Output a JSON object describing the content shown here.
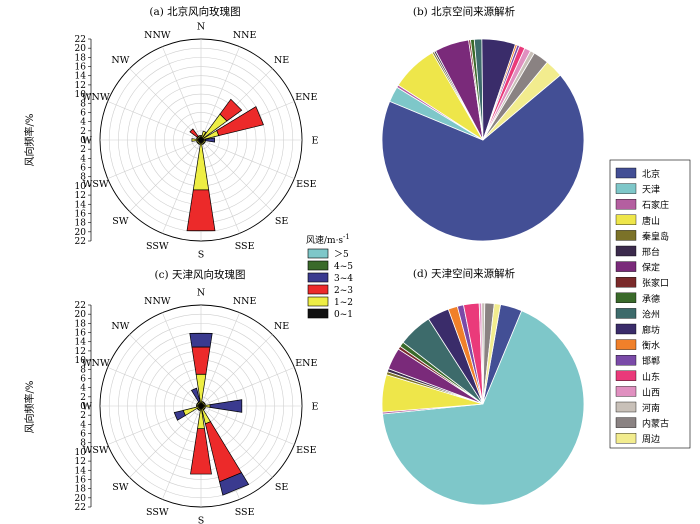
{
  "chart_data": [
    {
      "type": "wind-rose",
      "title": "(a) 北京风向玫瑰图",
      "ylabel": "风向频率/%",
      "directions": [
        "N",
        "NNE",
        "NE",
        "ENE",
        "E",
        "ESE",
        "SE",
        "SSE",
        "S",
        "SSW",
        "SW",
        "WSW",
        "W",
        "WNW",
        "NW",
        "NNW"
      ],
      "radial_ticks": [
        0,
        2,
        4,
        6,
        8,
        10,
        12,
        14,
        16,
        18,
        20,
        22
      ],
      "rmax": 22,
      "stacks": {
        "N": [
          {
            "class": "1~2",
            "from": 0,
            "to": 1
          }
        ],
        "NNE": [
          {
            "class": "1~2",
            "from": 0,
            "to": 2
          }
        ],
        "NE": [
          {
            "class": "1~2",
            "from": 0,
            "to": 7
          },
          {
            "class": "2~3",
            "from": 7,
            "to": 11
          }
        ],
        "ENE": [
          {
            "class": "1~2",
            "from": 0,
            "to": 4
          },
          {
            "class": "2~3",
            "from": 4,
            "to": 14
          }
        ],
        "E": [
          {
            "class": "1~2",
            "from": 0,
            "to": 1
          },
          {
            "class": "3~4",
            "from": 1,
            "to": 3
          }
        ],
        "ESE": [
          {
            "class": "1~2",
            "from": 0,
            "to": 1
          }
        ],
        "SE": [
          {
            "class": "1~2",
            "from": 0,
            "to": 1
          }
        ],
        "SSE": [
          {
            "class": "1~2",
            "from": 0,
            "to": 1
          }
        ],
        "S": [
          {
            "class": "1~2",
            "from": 0,
            "to": 11
          },
          {
            "class": "2~3",
            "from": 11,
            "to": 20
          }
        ],
        "SSW": [
          {
            "class": "1~2",
            "from": 0,
            "to": 1
          }
        ],
        "SW": [
          {
            "class": "1~2",
            "from": 0,
            "to": 1
          }
        ],
        "WSW": [
          {
            "class": "1~2",
            "from": 0,
            "to": 1
          }
        ],
        "W": [
          {
            "class": "1~2",
            "from": 0,
            "to": 2
          }
        ],
        "WNW": [
          {
            "class": "1~2",
            "from": 0,
            "to": 1
          }
        ],
        "NW": [
          {
            "class": "1~2",
            "from": 0,
            "to": 1
          },
          {
            "class": "2~3",
            "from": 1,
            "to": 3
          }
        ],
        "NNW": [
          {
            "class": "1~2",
            "from": 0,
            "to": 1
          }
        ]
      }
    },
    {
      "type": "pie",
      "title": "(b) 北京空间来源解析",
      "labels": [
        "北京",
        "天津",
        "石家庄",
        "唐山",
        "秦皇岛",
        "邢台",
        "保定",
        "张家口",
        "承德",
        "沧州",
        "廊坊",
        "衡水",
        "邯郸",
        "山东",
        "山西",
        "河南",
        "内蒙古",
        "周边"
      ],
      "values": [
        67.5,
        2.5,
        0.4,
        7.5,
        0.3,
        0.3,
        5.5,
        0.3,
        0.6,
        1.2,
        5.4,
        0.3,
        0.4,
        0.9,
        1.0,
        0.7,
        2.5,
        2.9
      ]
    },
    {
      "type": "wind-rose",
      "title": "(c) 天津风向玫瑰图",
      "ylabel": "风向频率/%",
      "directions": [
        "N",
        "NNE",
        "NE",
        "ENE",
        "E",
        "ESE",
        "SE",
        "SSE",
        "S",
        "SSW",
        "SW",
        "WSW",
        "W",
        "WNW",
        "NW",
        "NNW"
      ],
      "radial_ticks": [
        0,
        2,
        4,
        6,
        8,
        10,
        12,
        14,
        16,
        18,
        20,
        22
      ],
      "rmax": 22,
      "stacks": {
        "N": [
          {
            "class": "1~2",
            "from": 0,
            "to": 7
          },
          {
            "class": "2~3",
            "from": 7,
            "to": 13
          },
          {
            "class": "3~4",
            "from": 13,
            "to": 16
          }
        ],
        "NNE": [
          {
            "class": "1~2",
            "from": 0,
            "to": 1
          }
        ],
        "NE": [
          {
            "class": "1~2",
            "from": 0,
            "to": 1
          }
        ],
        "ENE": [
          {
            "class": "1~2",
            "from": 0,
            "to": 1
          }
        ],
        "E": [
          {
            "class": "1~2",
            "from": 0,
            "to": 2
          },
          {
            "class": "3~4",
            "from": 2,
            "to": 9
          }
        ],
        "ESE": [
          {
            "class": "1~2",
            "from": 0,
            "to": 1
          }
        ],
        "SE": [
          {
            "class": "1~2",
            "from": 0,
            "to": 1
          }
        ],
        "SSE": [
          {
            "class": "1~2",
            "from": 0,
            "to": 4
          },
          {
            "class": "2~3",
            "from": 4,
            "to": 17
          },
          {
            "class": "3~4",
            "from": 17,
            "to": 20
          }
        ],
        "S": [
          {
            "class": "1~2",
            "from": 0,
            "to": 5
          },
          {
            "class": "2~3",
            "from": 5,
            "to": 15
          }
        ],
        "SSW": [
          {
            "class": "1~2",
            "from": 0,
            "to": 1
          }
        ],
        "SW": [
          {
            "class": "1~2",
            "from": 0,
            "to": 1
          }
        ],
        "WSW": [
          {
            "class": "1~2",
            "from": 0,
            "to": 4
          },
          {
            "class": "3~4",
            "from": 4,
            "to": 6
          }
        ],
        "W": [
          {
            "class": "1~2",
            "from": 0,
            "to": 1
          }
        ],
        "WNW": [
          {
            "class": "1~2",
            "from": 0,
            "to": 1
          }
        ],
        "NW": [
          {
            "class": "1~2",
            "from": 0,
            "to": 1
          }
        ],
        "NNW": [
          {
            "class": "1~2",
            "from": 0,
            "to": 1
          },
          {
            "class": "3~4",
            "from": 1,
            "to": 4
          }
        ]
      }
    },
    {
      "type": "pie",
      "title": "(d) 天津空间来源解析",
      "labels": [
        "北京",
        "天津",
        "石家庄",
        "唐山",
        "秦皇岛",
        "邢台",
        "保定",
        "张家口",
        "承德",
        "沧州",
        "廊坊",
        "衡水",
        "邯郸",
        "山东",
        "山西",
        "河南",
        "内蒙古",
        "周边"
      ],
      "values": [
        3.5,
        67.5,
        0.3,
        6.0,
        0.5,
        0.5,
        3.5,
        0.5,
        0.8,
        5.5,
        3.5,
        1.5,
        1.0,
        2.5,
        0.4,
        0.5,
        1.5,
        1.0
      ]
    }
  ],
  "source_colors": {
    "北京": "#434f95",
    "天津": "#7ec7c9",
    "石家庄": "#b45fa0",
    "唐山": "#eee64a",
    "秦皇岛": "#7b7228",
    "邢台": "#3b2a4c",
    "保定": "#7a2a7a",
    "张家口": "#7a2a2a",
    "承德": "#3a6a2a",
    "沧州": "#3d6b6b",
    "廊坊": "#3a2c6a",
    "衡水": "#f0802a",
    "邯郸": "#7a4aa8",
    "山东": "#ea3a7a",
    "山西": "#e090c0",
    "河南": "#c8c0b8",
    "内蒙古": "#8a8282",
    "周边": "#f2ec8e"
  },
  "wind_legend": {
    "title": "风速/m·s",
    "title_sup": "-1",
    "items": [
      {
        "label": "＞5",
        "color": "#7ec7c9"
      },
      {
        "label": "4~5",
        "color": "#3a6a2a"
      },
      {
        "label": "3~4",
        "color": "#3a3a8f"
      },
      {
        "label": "2~3",
        "color": "#ec2a2a"
      },
      {
        "label": "1~2",
        "color": "#eeee44"
      },
      {
        "label": "0~1",
        "color": "#111111"
      }
    ]
  }
}
